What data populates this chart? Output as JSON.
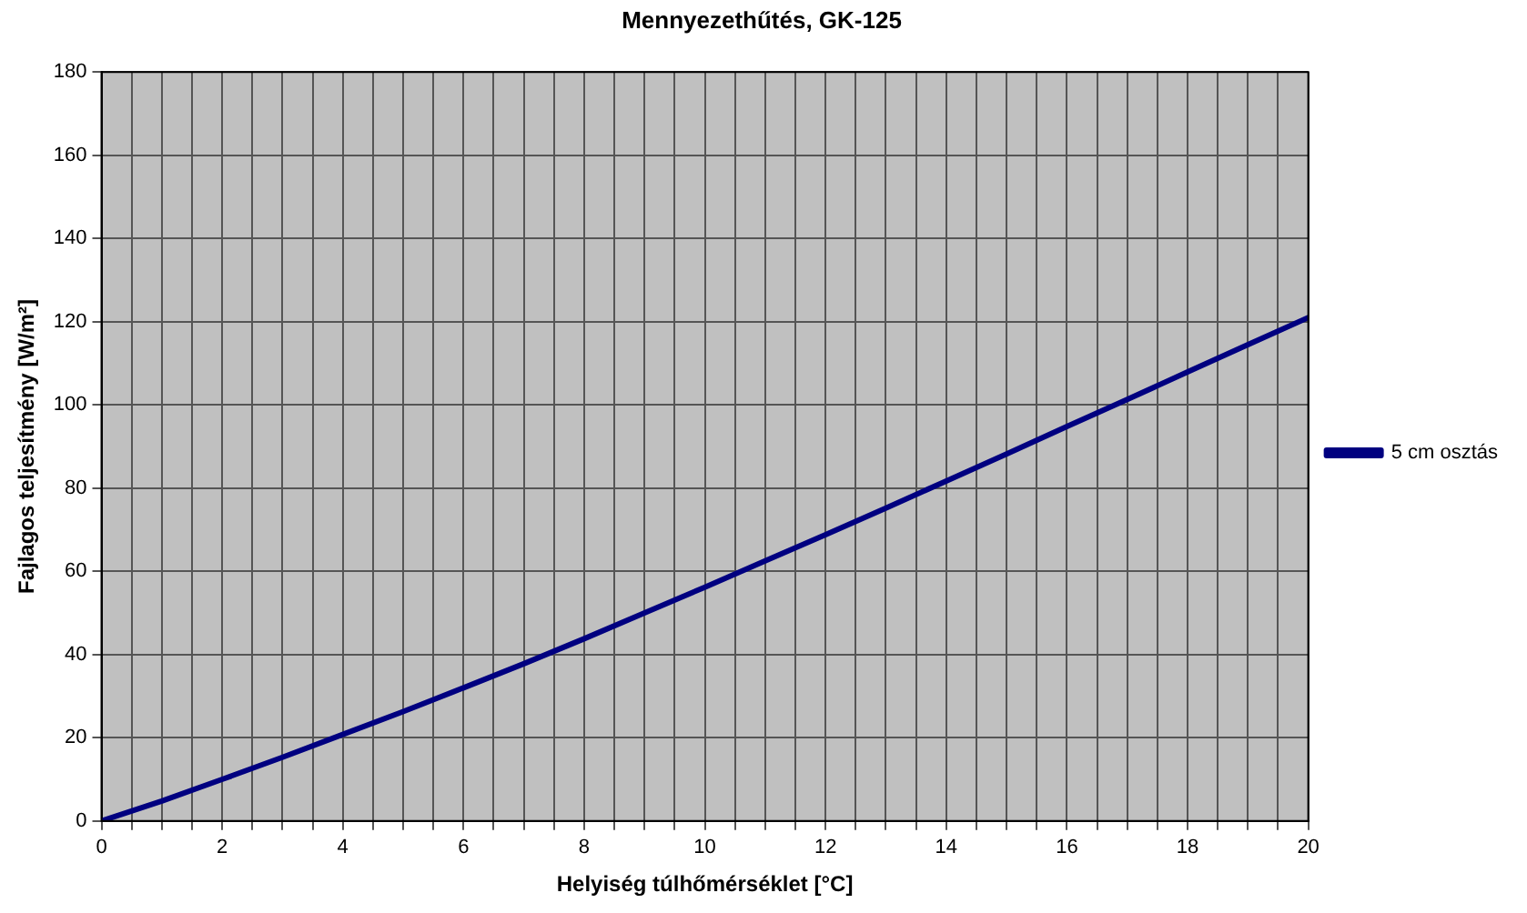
{
  "chart_data": {
    "type": "line",
    "title": "Mennyezethűtés, GK-125",
    "xlabel": "Helyiség túlhőmérséklet [°C]",
    "ylabel": "Fajlagos teljesítmény [W/m²]",
    "x": [
      0,
      1,
      2,
      3,
      4,
      5,
      6,
      7,
      8,
      9,
      10,
      11,
      12,
      13,
      14,
      15,
      16,
      17,
      18,
      19,
      20
    ],
    "series": [
      {
        "name": "5 cm osztás",
        "color": "#000080",
        "values": [
          0,
          4.8,
          10,
          15.3,
          20.8,
          26.3,
          32,
          37.8,
          43.8,
          50,
          56.2,
          62.5,
          68.8,
          75.2,
          81.7,
          88.2,
          94.8,
          101.3,
          107.9,
          114.5,
          121
        ]
      }
    ],
    "xlim": [
      0,
      20
    ],
    "ylim": [
      0,
      180
    ],
    "xticks": [
      0,
      {
        "value": 0.5,
        "label": null
      },
      {
        "value": 1,
        "label": null
      },
      {
        "value": 1.5,
        "label": null
      },
      2,
      {
        "value": 2.5,
        "label": null
      },
      {
        "value": 3,
        "label": null
      },
      {
        "value": 3.5,
        "label": null
      },
      4,
      {
        "value": 4.5,
        "label": null
      },
      {
        "value": 5,
        "label": null
      },
      {
        "value": 5.5,
        "label": null
      },
      6,
      {
        "value": 6.5,
        "label": null
      },
      {
        "value": 7,
        "label": null
      },
      {
        "value": 7.5,
        "label": null
      },
      8,
      {
        "value": 8.5,
        "label": null
      },
      {
        "value": 9,
        "label": null
      },
      {
        "value": 9.5,
        "label": null
      },
      10,
      {
        "value": 10.5,
        "label": null
      },
      {
        "value": 11,
        "label": null
      },
      {
        "value": 11.5,
        "label": null
      },
      12,
      {
        "value": 12.5,
        "label": null
      },
      {
        "value": 13,
        "label": null
      },
      {
        "value": 13.5,
        "label": null
      },
      14,
      {
        "value": 14.5,
        "label": null
      },
      {
        "value": 15,
        "label": null
      },
      {
        "value": 15.5,
        "label": null
      },
      16,
      {
        "value": 16.5,
        "label": null
      },
      {
        "value": 17,
        "label": null
      },
      {
        "value": 17.5,
        "label": null
      },
      18,
      {
        "value": 18.5,
        "label": null
      },
      {
        "value": 19,
        "label": null
      },
      {
        "value": 19.5,
        "label": null
      },
      20
    ],
    "yticks": [
      0,
      20,
      40,
      60,
      80,
      100,
      120,
      140,
      160,
      180
    ],
    "grid": true,
    "legend": "right",
    "marker": "none",
    "line_style": "solid"
  }
}
